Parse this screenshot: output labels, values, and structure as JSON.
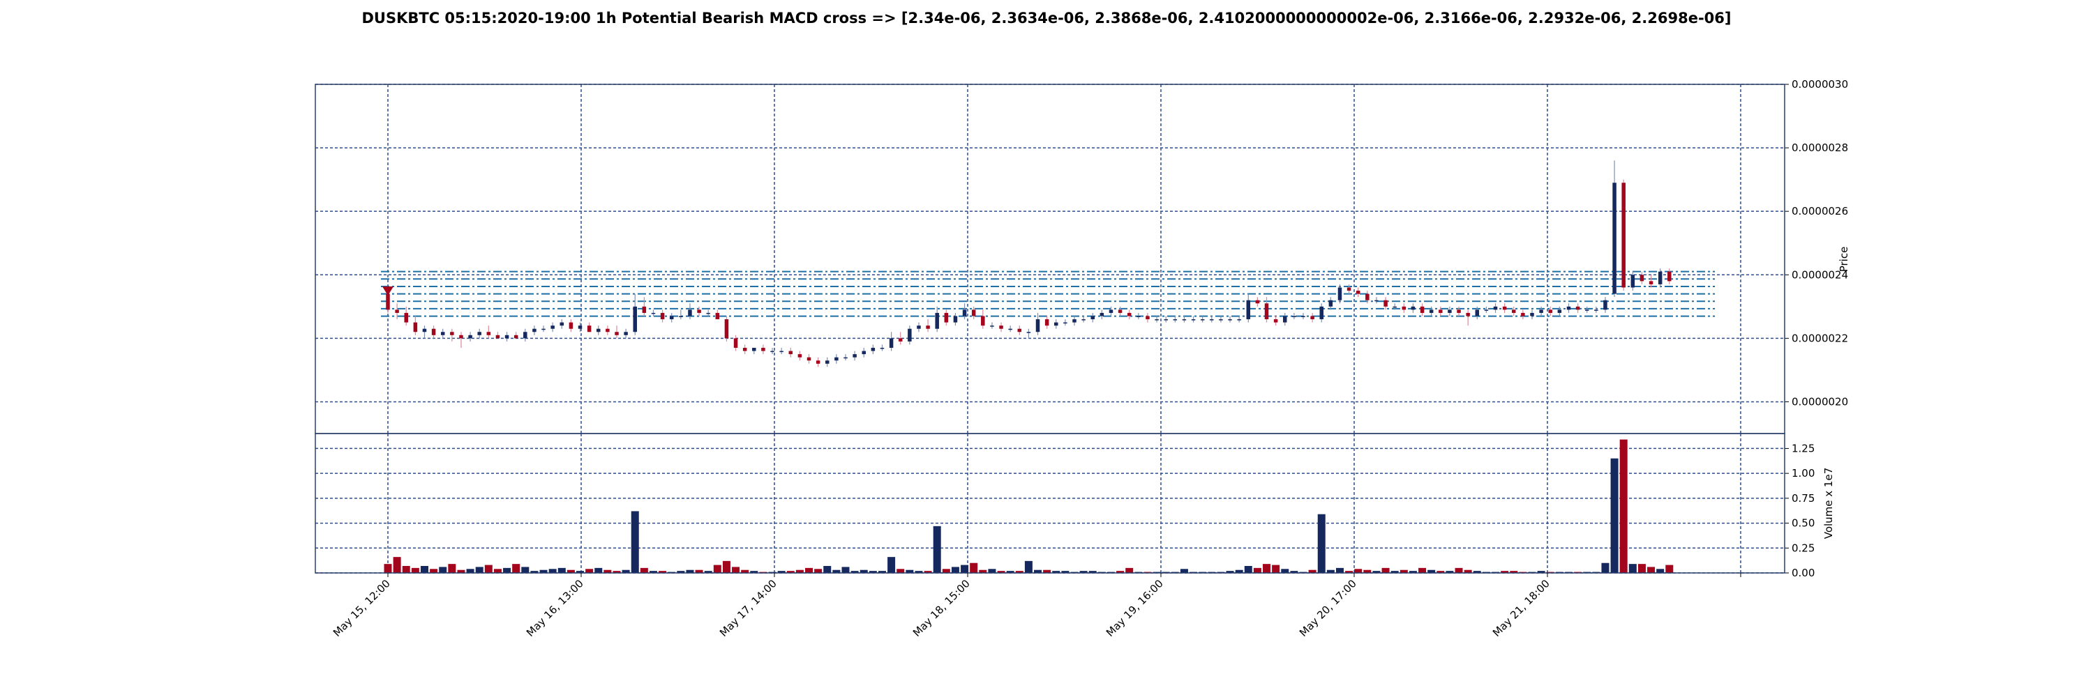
{
  "title": "DUSKBTC 05:15:2020-19:00 1h Potential Bearish MACD cross => [2.34e-06, 2.3634e-06, 2.3868e-06, 2.4102000000000002e-06, 2.3166e-06, 2.2932e-06, 2.2698e-06]",
  "colors": {
    "up": "#15295e",
    "down": "#a3051d",
    "grid": "#2f4f8f",
    "level": "#1f6fa5",
    "wick_up": "#7f8fb0",
    "wick_down": "#d98a99"
  },
  "chart_data": {
    "type": "candlestick",
    "price_axis": {
      "label": "Price",
      "ylim": [
        1.9e-06,
        3e-06
      ],
      "ticks": [
        "0.0000020",
        "0.0000022",
        "0.0000024",
        "0.0000026",
        "0.0000028",
        "0.0000030"
      ],
      "side": "right"
    },
    "volume_axis": {
      "label": "Volume x 1e7",
      "ylim": [
        0,
        1.4
      ],
      "ticks": [
        "0.00",
        "0.25",
        "0.50",
        "0.75",
        "1.00",
        "1.25"
      ],
      "side": "right"
    },
    "x_ticks": [
      "May 15, 12:00",
      "May 16, 13:00",
      "May 17, 14:00",
      "May 18, 15:00",
      "May 19, 16:00",
      "May 20, 17:00",
      "May 21, 18:00"
    ],
    "grid": true,
    "levels": [
      2.34e-06,
      2.3634e-06,
      2.3868e-06,
      2.4102e-06,
      2.3166e-06,
      2.2932e-06,
      2.2698e-06
    ],
    "signal": {
      "type": "bearish",
      "marker": "down-triangle",
      "candle_index": 0,
      "price": 2.35e-06
    },
    "candles": [
      {
        "o": 2.34e-06,
        "h": 2.36e-06,
        "l": 2.28e-06,
        "c": 2.29e-06,
        "v": 0.09
      },
      {
        "o": 2.29e-06,
        "h": 2.31e-06,
        "l": 2.26e-06,
        "c": 2.28e-06,
        "v": 0.16
      },
      {
        "o": 2.28e-06,
        "h": 2.3e-06,
        "l": 2.24e-06,
        "c": 2.25e-06,
        "v": 0.07
      },
      {
        "o": 2.25e-06,
        "h": 2.27e-06,
        "l": 2.21e-06,
        "c": 2.22e-06,
        "v": 0.05
      },
      {
        "o": 2.22e-06,
        "h": 2.24e-06,
        "l": 2.2e-06,
        "c": 2.23e-06,
        "v": 0.07
      },
      {
        "o": 2.23e-06,
        "h": 2.24e-06,
        "l": 2.2e-06,
        "c": 2.21e-06,
        "v": 0.04
      },
      {
        "o": 2.21e-06,
        "h": 2.23e-06,
        "l": 2.2e-06,
        "c": 2.22e-06,
        "v": 0.06
      },
      {
        "o": 2.22e-06,
        "h": 2.23e-06,
        "l": 2.19e-06,
        "c": 2.21e-06,
        "v": 0.09
      },
      {
        "o": 2.21e-06,
        "h": 2.22e-06,
        "l": 2.17e-06,
        "c": 2.2e-06,
        "v": 0.03
      },
      {
        "o": 2.2e-06,
        "h": 2.22e-06,
        "l": 2.19e-06,
        "c": 2.21e-06,
        "v": 0.04
      },
      {
        "o": 2.21e-06,
        "h": 2.23e-06,
        "l": 2.2e-06,
        "c": 2.22e-06,
        "v": 0.06
      },
      {
        "o": 2.22e-06,
        "h": 2.24e-06,
        "l": 2.2e-06,
        "c": 2.21e-06,
        "v": 0.08
      },
      {
        "o": 2.21e-06,
        "h": 2.22e-06,
        "l": 2.2e-06,
        "c": 2.2e-06,
        "v": 0.04
      },
      {
        "o": 2.2e-06,
        "h": 2.22e-06,
        "l": 2.19e-06,
        "c": 2.21e-06,
        "v": 0.05
      },
      {
        "o": 2.21e-06,
        "h": 2.22e-06,
        "l": 2.2e-06,
        "c": 2.2e-06,
        "v": 0.09
      },
      {
        "o": 2.2e-06,
        "h": 2.23e-06,
        "l": 2.19e-06,
        "c": 2.22e-06,
        "v": 0.06
      },
      {
        "o": 2.22e-06,
        "h": 2.24e-06,
        "l": 2.21e-06,
        "c": 2.23e-06,
        "v": 0.02
      },
      {
        "o": 2.23e-06,
        "h": 2.24e-06,
        "l": 2.22e-06,
        "c": 2.23e-06,
        "v": 0.03
      },
      {
        "o": 2.23e-06,
        "h": 2.25e-06,
        "l": 2.22e-06,
        "c": 2.24e-06,
        "v": 0.04
      },
      {
        "o": 2.24e-06,
        "h": 2.26e-06,
        "l": 2.23e-06,
        "c": 2.25e-06,
        "v": 0.05
      },
      {
        "o": 2.25e-06,
        "h": 2.26e-06,
        "l": 2.22e-06,
        "c": 2.23e-06,
        "v": 0.03
      },
      {
        "o": 2.23e-06,
        "h": 2.25e-06,
        "l": 2.22e-06,
        "c": 2.24e-06,
        "v": 0.02
      },
      {
        "o": 2.24e-06,
        "h": 2.25e-06,
        "l": 2.22e-06,
        "c": 2.22e-06,
        "v": 0.04
      },
      {
        "o": 2.22e-06,
        "h": 2.24e-06,
        "l": 2.21e-06,
        "c": 2.23e-06,
        "v": 0.05
      },
      {
        "o": 2.23e-06,
        "h": 2.24e-06,
        "l": 2.21e-06,
        "c": 2.22e-06,
        "v": 0.03
      },
      {
        "o": 2.22e-06,
        "h": 2.24e-06,
        "l": 2.2e-06,
        "c": 2.21e-06,
        "v": 0.02
      },
      {
        "o": 2.21e-06,
        "h": 2.23e-06,
        "l": 2.2e-06,
        "c": 2.22e-06,
        "v": 0.03
      },
      {
        "o": 2.22e-06,
        "h": 2.34e-06,
        "l": 2.21e-06,
        "c": 2.3e-06,
        "v": 0.62
      },
      {
        "o": 2.3e-06,
        "h": 2.33e-06,
        "l": 2.27e-06,
        "c": 2.28e-06,
        "v": 0.05
      },
      {
        "o": 2.28e-06,
        "h": 2.29e-06,
        "l": 2.27e-06,
        "c": 2.28e-06,
        "v": 0.02
      },
      {
        "o": 2.28e-06,
        "h": 2.29e-06,
        "l": 2.25e-06,
        "c": 2.26e-06,
        "v": 0.02
      },
      {
        "o": 2.26e-06,
        "h": 2.28e-06,
        "l": 2.25e-06,
        "c": 2.27e-06,
        "v": 0.01
      },
      {
        "o": 2.27e-06,
        "h": 2.29e-06,
        "l": 2.26e-06,
        "c": 2.27e-06,
        "v": 0.02
      },
      {
        "o": 2.27e-06,
        "h": 2.31e-06,
        "l": 2.26e-06,
        "c": 2.29e-06,
        "v": 0.03
      },
      {
        "o": 2.29e-06,
        "h": 2.3e-06,
        "l": 2.27e-06,
        "c": 2.28e-06,
        "v": 0.03
      },
      {
        "o": 2.28e-06,
        "h": 2.29e-06,
        "l": 2.27e-06,
        "c": 2.28e-06,
        "v": 0.02
      },
      {
        "o": 2.28e-06,
        "h": 2.29e-06,
        "l": 2.26e-06,
        "c": 2.26e-06,
        "v": 0.08
      },
      {
        "o": 2.26e-06,
        "h": 2.27e-06,
        "l": 2.19e-06,
        "c": 2.2e-06,
        "v": 0.12
      },
      {
        "o": 2.2e-06,
        "h": 2.21e-06,
        "l": 2.16e-06,
        "c": 2.17e-06,
        "v": 0.06
      },
      {
        "o": 2.17e-06,
        "h": 2.18e-06,
        "l": 2.15e-06,
        "c": 2.16e-06,
        "v": 0.03
      },
      {
        "o": 2.16e-06,
        "h": 2.17e-06,
        "l": 2.15e-06,
        "c": 2.17e-06,
        "v": 0.02
      },
      {
        "o": 2.17e-06,
        "h": 2.18e-06,
        "l": 2.15e-06,
        "c": 2.16e-06,
        "v": 0.01
      },
      {
        "o": 2.16e-06,
        "h": 2.17e-06,
        "l": 2.15e-06,
        "c": 2.16e-06,
        "v": 0.01
      },
      {
        "o": 2.16e-06,
        "h": 2.17e-06,
        "l": 2.15e-06,
        "c": 2.16e-06,
        "v": 0.02
      },
      {
        "o": 2.16e-06,
        "h": 2.17e-06,
        "l": 2.14e-06,
        "c": 2.15e-06,
        "v": 0.02
      },
      {
        "o": 2.15e-06,
        "h": 2.16e-06,
        "l": 2.13e-06,
        "c": 2.14e-06,
        "v": 0.03
      },
      {
        "o": 2.14e-06,
        "h": 2.15e-06,
        "l": 2.12e-06,
        "c": 2.13e-06,
        "v": 0.05
      },
      {
        "o": 2.13e-06,
        "h": 2.14e-06,
        "l": 2.11e-06,
        "c": 2.12e-06,
        "v": 0.04
      },
      {
        "o": 2.12e-06,
        "h": 2.14e-06,
        "l": 2.11e-06,
        "c": 2.13e-06,
        "v": 0.07
      },
      {
        "o": 2.13e-06,
        "h": 2.15e-06,
        "l": 2.12e-06,
        "c": 2.14e-06,
        "v": 0.03
      },
      {
        "o": 2.14e-06,
        "h": 2.15e-06,
        "l": 2.13e-06,
        "c": 2.14e-06,
        "v": 0.06
      },
      {
        "o": 2.14e-06,
        "h": 2.16e-06,
        "l": 2.13e-06,
        "c": 2.15e-06,
        "v": 0.02
      },
      {
        "o": 2.15e-06,
        "h": 2.17e-06,
        "l": 2.14e-06,
        "c": 2.16e-06,
        "v": 0.03
      },
      {
        "o": 2.16e-06,
        "h": 2.18e-06,
        "l": 2.15e-06,
        "c": 2.17e-06,
        "v": 0.02
      },
      {
        "o": 2.17e-06,
        "h": 2.18e-06,
        "l": 2.16e-06,
        "c": 2.17e-06,
        "v": 0.02
      },
      {
        "o": 2.17e-06,
        "h": 2.22e-06,
        "l": 2.16e-06,
        "c": 2.2e-06,
        "v": 0.16
      },
      {
        "o": 2.2e-06,
        "h": 2.22e-06,
        "l": 2.18e-06,
        "c": 2.19e-06,
        "v": 0.04
      },
      {
        "o": 2.19e-06,
        "h": 2.24e-06,
        "l": 2.18e-06,
        "c": 2.23e-06,
        "v": 0.03
      },
      {
        "o": 2.23e-06,
        "h": 2.25e-06,
        "l": 2.22e-06,
        "c": 2.24e-06,
        "v": 0.02
      },
      {
        "o": 2.24e-06,
        "h": 2.26e-06,
        "l": 2.22e-06,
        "c": 2.23e-06,
        "v": 0.02
      },
      {
        "o": 2.23e-06,
        "h": 2.3e-06,
        "l": 2.22e-06,
        "c": 2.28e-06,
        "v": 0.47
      },
      {
        "o": 2.28e-06,
        "h": 2.29e-06,
        "l": 2.24e-06,
        "c": 2.25e-06,
        "v": 0.04
      },
      {
        "o": 2.25e-06,
        "h": 2.28e-06,
        "l": 2.24e-06,
        "c": 2.27e-06,
        "v": 0.06
      },
      {
        "o": 2.27e-06,
        "h": 2.31e-06,
        "l": 2.26e-06,
        "c": 2.29e-06,
        "v": 0.08
      },
      {
        "o": 2.29e-06,
        "h": 2.3e-06,
        "l": 2.26e-06,
        "c": 2.27e-06,
        "v": 0.1
      },
      {
        "o": 2.27e-06,
        "h": 2.29e-06,
        "l": 2.23e-06,
        "c": 2.24e-06,
        "v": 0.03
      },
      {
        "o": 2.24e-06,
        "h": 2.25e-06,
        "l": 2.23e-06,
        "c": 2.24e-06,
        "v": 0.04
      },
      {
        "o": 2.24e-06,
        "h": 2.25e-06,
        "l": 2.22e-06,
        "c": 2.23e-06,
        "v": 0.02
      },
      {
        "o": 2.23e-06,
        "h": 2.24e-06,
        "l": 2.22e-06,
        "c": 2.23e-06,
        "v": 0.02
      },
      {
        "o": 2.23e-06,
        "h": 2.24e-06,
        "l": 2.21e-06,
        "c": 2.22e-06,
        "v": 0.02
      },
      {
        "o": 2.22e-06,
        "h": 2.23e-06,
        "l": 2.2e-06,
        "c": 2.22e-06,
        "v": 0.12
      },
      {
        "o": 2.22e-06,
        "h": 2.28e-06,
        "l": 2.21e-06,
        "c": 2.26e-06,
        "v": 0.03
      },
      {
        "o": 2.26e-06,
        "h": 2.27e-06,
        "l": 2.23e-06,
        "c": 2.24e-06,
        "v": 0.03
      },
      {
        "o": 2.24e-06,
        "h": 2.26e-06,
        "l": 2.23e-06,
        "c": 2.25e-06,
        "v": 0.02
      },
      {
        "o": 2.25e-06,
        "h": 2.26e-06,
        "l": 2.24e-06,
        "c": 2.25e-06,
        "v": 0.02
      },
      {
        "o": 2.25e-06,
        "h": 2.27e-06,
        "l": 2.24e-06,
        "c": 2.26e-06,
        "v": 0.01
      },
      {
        "o": 2.26e-06,
        "h": 2.27e-06,
        "l": 2.25e-06,
        "c": 2.26e-06,
        "v": 0.02
      },
      {
        "o": 2.26e-06,
        "h": 2.28e-06,
        "l": 2.25e-06,
        "c": 2.27e-06,
        "v": 0.02
      },
      {
        "o": 2.27e-06,
        "h": 2.29e-06,
        "l": 2.26e-06,
        "c": 2.28e-06,
        "v": 0.01
      },
      {
        "o": 2.28e-06,
        "h": 2.3e-06,
        "l": 2.27e-06,
        "c": 2.29e-06,
        "v": 0.01
      },
      {
        "o": 2.29e-06,
        "h": 2.3e-06,
        "l": 2.27e-06,
        "c": 2.28e-06,
        "v": 0.02
      },
      {
        "o": 2.28e-06,
        "h": 2.29e-06,
        "l": 2.26e-06,
        "c": 2.27e-06,
        "v": 0.05
      },
      {
        "o": 2.27e-06,
        "h": 2.28e-06,
        "l": 2.26e-06,
        "c": 2.27e-06,
        "v": 0.01
      },
      {
        "o": 2.27e-06,
        "h": 2.28e-06,
        "l": 2.25e-06,
        "c": 2.26e-06,
        "v": 0.01
      },
      {
        "o": 2.26e-06,
        "h": 2.27e-06,
        "l": 2.25e-06,
        "c": 2.26e-06,
        "v": 0.01
      },
      {
        "o": 2.26e-06,
        "h": 2.27e-06,
        "l": 2.25e-06,
        "c": 2.26e-06,
        "v": 0.01
      },
      {
        "o": 2.26e-06,
        "h": 2.27e-06,
        "l": 2.25e-06,
        "c": 2.26e-06,
        "v": 0.01
      },
      {
        "o": 2.26e-06,
        "h": 2.27e-06,
        "l": 2.25e-06,
        "c": 2.26e-06,
        "v": 0.04
      },
      {
        "o": 2.26e-06,
        "h": 2.27e-06,
        "l": 2.25e-06,
        "c": 2.26e-06,
        "v": 0.01
      },
      {
        "o": 2.26e-06,
        "h": 2.27e-06,
        "l": 2.25e-06,
        "c": 2.26e-06,
        "v": 0.01
      },
      {
        "o": 2.26e-06,
        "h": 2.27e-06,
        "l": 2.25e-06,
        "c": 2.26e-06,
        "v": 0.01
      },
      {
        "o": 2.26e-06,
        "h": 2.27e-06,
        "l": 2.25e-06,
        "c": 2.26e-06,
        "v": 0.01
      },
      {
        "o": 2.26e-06,
        "h": 2.27e-06,
        "l": 2.25e-06,
        "c": 2.26e-06,
        "v": 0.02
      },
      {
        "o": 2.26e-06,
        "h": 2.27e-06,
        "l": 2.25e-06,
        "c": 2.26e-06,
        "v": 0.03
      },
      {
        "o": 2.26e-06,
        "h": 2.34e-06,
        "l": 2.25e-06,
        "c": 2.32e-06,
        "v": 0.07
      },
      {
        "o": 2.32e-06,
        "h": 2.33e-06,
        "l": 2.3e-06,
        "c": 2.31e-06,
        "v": 0.05
      },
      {
        "o": 2.31e-06,
        "h": 2.33e-06,
        "l": 2.25e-06,
        "c": 2.26e-06,
        "v": 0.09
      },
      {
        "o": 2.26e-06,
        "h": 2.27e-06,
        "l": 2.24e-06,
        "c": 2.25e-06,
        "v": 0.08
      },
      {
        "o": 2.25e-06,
        "h": 2.28e-06,
        "l": 2.24e-06,
        "c": 2.27e-06,
        "v": 0.04
      },
      {
        "o": 2.27e-06,
        "h": 2.28e-06,
        "l": 2.26e-06,
        "c": 2.27e-06,
        "v": 0.02
      },
      {
        "o": 2.27e-06,
        "h": 2.28e-06,
        "l": 2.26e-06,
        "c": 2.27e-06,
        "v": 0.01
      },
      {
        "o": 2.27e-06,
        "h": 2.28e-06,
        "l": 2.25e-06,
        "c": 2.26e-06,
        "v": 0.03
      },
      {
        "o": 2.26e-06,
        "h": 2.31e-06,
        "l": 2.25e-06,
        "c": 2.3e-06,
        "v": 0.59
      },
      {
        "o": 2.3e-06,
        "h": 2.33e-06,
        "l": 2.29e-06,
        "c": 2.32e-06,
        "v": 0.03
      },
      {
        "o": 2.32e-06,
        "h": 2.37e-06,
        "l": 2.31e-06,
        "c": 2.36e-06,
        "v": 0.05
      },
      {
        "o": 2.36e-06,
        "h": 2.37e-06,
        "l": 2.34e-06,
        "c": 2.35e-06,
        "v": 0.02
      },
      {
        "o": 2.35e-06,
        "h": 2.36e-06,
        "l": 2.33e-06,
        "c": 2.34e-06,
        "v": 0.04
      },
      {
        "o": 2.34e-06,
        "h": 2.35e-06,
        "l": 2.31e-06,
        "c": 2.32e-06,
        "v": 0.03
      },
      {
        "o": 2.32e-06,
        "h": 2.33e-06,
        "l": 2.31e-06,
        "c": 2.32e-06,
        "v": 0.02
      },
      {
        "o": 2.32e-06,
        "h": 2.33e-06,
        "l": 2.29e-06,
        "c": 2.3e-06,
        "v": 0.05
      },
      {
        "o": 2.3e-06,
        "h": 2.31e-06,
        "l": 2.29e-06,
        "c": 2.3e-06,
        "v": 0.02
      },
      {
        "o": 2.3e-06,
        "h": 2.31e-06,
        "l": 2.28e-06,
        "c": 2.29e-06,
        "v": 0.03
      },
      {
        "o": 2.29e-06,
        "h": 2.31e-06,
        "l": 2.28e-06,
        "c": 2.3e-06,
        "v": 0.02
      },
      {
        "o": 2.3e-06,
        "h": 2.31e-06,
        "l": 2.27e-06,
        "c": 2.28e-06,
        "v": 0.05
      },
      {
        "o": 2.28e-06,
        "h": 2.3e-06,
        "l": 2.27e-06,
        "c": 2.29e-06,
        "v": 0.03
      },
      {
        "o": 2.29e-06,
        "h": 2.3e-06,
        "l": 2.27e-06,
        "c": 2.28e-06,
        "v": 0.02
      },
      {
        "o": 2.28e-06,
        "h": 2.3e-06,
        "l": 2.27e-06,
        "c": 2.29e-06,
        "v": 0.02
      },
      {
        "o": 2.29e-06,
        "h": 2.3e-06,
        "l": 2.27e-06,
        "c": 2.28e-06,
        "v": 0.05
      },
      {
        "o": 2.28e-06,
        "h": 2.29e-06,
        "l": 2.24e-06,
        "c": 2.27e-06,
        "v": 0.03
      },
      {
        "o": 2.27e-06,
        "h": 2.3e-06,
        "l": 2.26e-06,
        "c": 2.29e-06,
        "v": 0.02
      },
      {
        "o": 2.29e-06,
        "h": 2.3e-06,
        "l": 2.28e-06,
        "c": 2.29e-06,
        "v": 0.01
      },
      {
        "o": 2.29e-06,
        "h": 2.31e-06,
        "l": 2.28e-06,
        "c": 2.3e-06,
        "v": 0.01
      },
      {
        "o": 2.3e-06,
        "h": 2.31e-06,
        "l": 2.28e-06,
        "c": 2.29e-06,
        "v": 0.02
      },
      {
        "o": 2.29e-06,
        "h": 2.3e-06,
        "l": 2.27e-06,
        "c": 2.28e-06,
        "v": 0.02
      },
      {
        "o": 2.28e-06,
        "h": 2.29e-06,
        "l": 2.26e-06,
        "c": 2.27e-06,
        "v": 0.01
      },
      {
        "o": 2.27e-06,
        "h": 2.29e-06,
        "l": 2.26e-06,
        "c": 2.28e-06,
        "v": 0.01
      },
      {
        "o": 2.28e-06,
        "h": 2.3e-06,
        "l": 2.27e-06,
        "c": 2.29e-06,
        "v": 0.02
      },
      {
        "o": 2.29e-06,
        "h": 2.3e-06,
        "l": 2.27e-06,
        "c": 2.28e-06,
        "v": 0.01
      },
      {
        "o": 2.28e-06,
        "h": 2.3e-06,
        "l": 2.27e-06,
        "c": 2.29e-06,
        "v": 0.01
      },
      {
        "o": 2.29e-06,
        "h": 2.31e-06,
        "l": 2.28e-06,
        "c": 2.3e-06,
        "v": 0.01
      },
      {
        "o": 2.3e-06,
        "h": 2.31e-06,
        "l": 2.28e-06,
        "c": 2.29e-06,
        "v": 0.01
      },
      {
        "o": 2.29e-06,
        "h": 2.3e-06,
        "l": 2.28e-06,
        "c": 2.29e-06,
        "v": 0.01
      },
      {
        "o": 2.29e-06,
        "h": 2.3e-06,
        "l": 2.28e-06,
        "c": 2.29e-06,
        "v": 0.01
      },
      {
        "o": 2.29e-06,
        "h": 2.33e-06,
        "l": 2.28e-06,
        "c": 2.32e-06,
        "v": 0.1
      },
      {
        "o": 2.34e-06,
        "h": 2.76e-06,
        "l": 2.33e-06,
        "c": 2.69e-06,
        "v": 1.15
      },
      {
        "o": 2.69e-06,
        "h": 2.7e-06,
        "l": 2.35e-06,
        "c": 2.36e-06,
        "v": 1.34
      },
      {
        "o": 2.36e-06,
        "h": 2.41e-06,
        "l": 2.35e-06,
        "c": 2.4e-06,
        "v": 0.09
      },
      {
        "o": 2.4e-06,
        "h": 2.41e-06,
        "l": 2.37e-06,
        "c": 2.38e-06,
        "v": 0.09
      },
      {
        "o": 2.38e-06,
        "h": 2.4e-06,
        "l": 2.36e-06,
        "c": 2.37e-06,
        "v": 0.06
      },
      {
        "o": 2.37e-06,
        "h": 2.42e-06,
        "l": 2.36e-06,
        "c": 2.41e-06,
        "v": 0.04
      },
      {
        "o": 2.41e-06,
        "h": 2.42e-06,
        "l": 2.37e-06,
        "c": 2.38e-06,
        "v": 0.08
      }
    ]
  }
}
